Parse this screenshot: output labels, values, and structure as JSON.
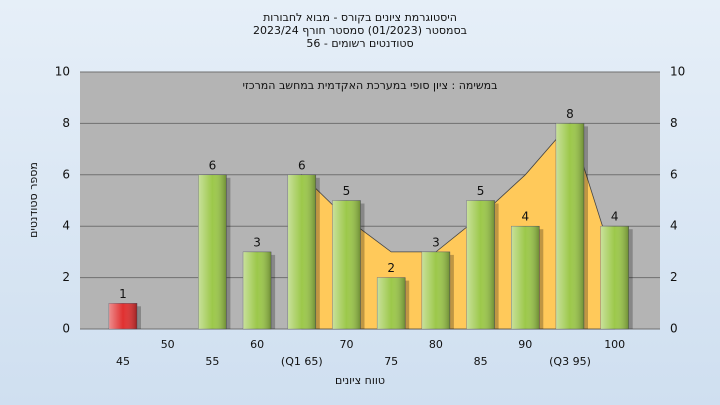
{
  "chart_data": {
    "type": "bar",
    "title": [
      "היסטוגרמת ציונים בקורס - מבוא לחבורות",
      "בסמסטר  (01/2023)  סמסטר חורף 2023/24",
      "סטודנטים רשומים - 56"
    ],
    "annotation": "במשימה : ציון סופי במערכת האקדמית במחשב המרכזי",
    "x_label": "טווח ציונים",
    "y_label": "מספר סטודנטים",
    "categories": [
      "45",
      "50",
      "55",
      "60",
      "(Q1 65)",
      "70",
      "75",
      "80",
      "85",
      "90",
      "(Q3 95)",
      "100"
    ],
    "values": [
      1,
      null,
      6,
      3,
      6,
      5,
      2,
      3,
      5,
      4,
      8,
      4
    ],
    "colors": [
      "#e03030",
      "#9cc84a",
      "#9cc84a",
      "#9cc84a",
      "#9cc84a",
      "#9cc84a",
      "#9cc84a",
      "#9cc84a",
      "#9cc84a",
      "#9cc84a",
      "#9cc84a",
      "#9cc84a"
    ],
    "area": {
      "color": "#ffc95a",
      "values": [
        null,
        null,
        null,
        null,
        6,
        4.3,
        3,
        3,
        4.4,
        6,
        8,
        2.5
      ]
    },
    "ylim": [
      0,
      10
    ],
    "yticks": [
      0,
      2,
      4,
      6,
      8,
      10
    ],
    "grid": true
  }
}
